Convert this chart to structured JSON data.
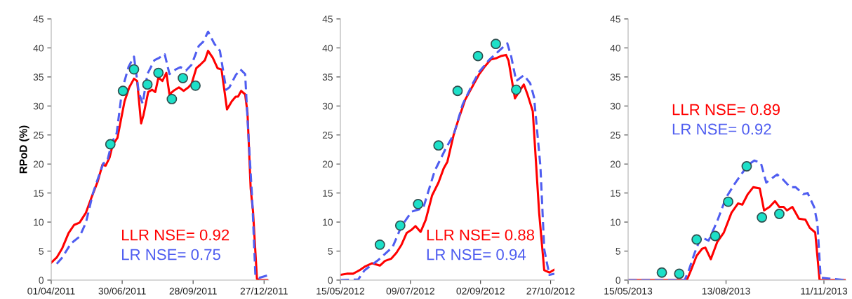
{
  "chart_data": [
    {
      "type": "line",
      "ylabel": "RPoD (%)",
      "xlim": [
        "2011-04-01",
        "2012-01-02"
      ],
      "ylim": [
        0,
        45
      ],
      "yticks": [
        0,
        5,
        10,
        15,
        20,
        25,
        30,
        35,
        40,
        45
      ],
      "xticks": [
        {
          "value": "2011-04-01",
          "label": "01/04/2011"
        },
        {
          "value": "2011-06-30",
          "label": "30/06/2011"
        },
        {
          "value": "2011-09-28",
          "label": "28/09/2011"
        },
        {
          "value": "2011-12-27",
          "label": "27/12/2011"
        }
      ],
      "grid": false,
      "legend": false,
      "annotations": [
        "LLR NSE= 0.92",
        "LR NSE= 0.75"
      ],
      "series": [
        {
          "color": "#ff0000",
          "line_style": "solid",
          "x": [
            "2011-04-01",
            "2011-04-08",
            "2011-04-15",
            "2011-04-23",
            "2011-04-30",
            "2011-05-07",
            "2011-05-15",
            "2011-05-22",
            "2011-05-30",
            "2011-06-05",
            "2011-06-09",
            "2011-06-14",
            "2011-06-18",
            "2011-06-24",
            "2011-06-29",
            "2011-07-03",
            "2011-07-09",
            "2011-07-15",
            "2011-07-19",
            "2011-07-24",
            "2011-07-27",
            "2011-08-02",
            "2011-08-07",
            "2011-08-11",
            "2011-08-15",
            "2011-08-20",
            "2011-08-25",
            "2011-08-29",
            "2011-09-03",
            "2011-09-10",
            "2011-09-16",
            "2011-09-22",
            "2011-09-26",
            "2011-10-02",
            "2011-10-07",
            "2011-10-13",
            "2011-10-17",
            "2011-10-23",
            "2011-10-29",
            "2011-11-03",
            "2011-11-10",
            "2011-11-16",
            "2011-11-21",
            "2011-11-24",
            "2011-11-28",
            "2011-12-03",
            "2011-12-06",
            "2011-12-10",
            "2011-12-13",
            "2011-12-18",
            "2011-12-21",
            "2011-12-31"
          ],
          "values": [
            3.0,
            3.9,
            5.5,
            8.1,
            9.5,
            9.9,
            11.6,
            14.2,
            17.0,
            19.9,
            19.7,
            21.1,
            23.3,
            24.5,
            28.0,
            30.8,
            33.2,
            34.7,
            34.3,
            27.0,
            28.4,
            32.4,
            32.8,
            32.4,
            34.9,
            34.3,
            35.7,
            32.0,
            32.6,
            33.2,
            32.6,
            33.2,
            33.8,
            36.5,
            37.1,
            37.9,
            39.5,
            38.3,
            36.5,
            36.3,
            29.4,
            30.8,
            31.6,
            31.6,
            32.6,
            32.0,
            28.8,
            15.8,
            11.8,
            0.2,
            0,
            0
          ]
        },
        {
          "color": "#4f5df0",
          "line_style": "dashed",
          "x": [
            "2011-04-08",
            "2011-04-15",
            "2011-04-26",
            "2011-05-07",
            "2011-05-15",
            "2011-05-24",
            "2011-05-30",
            "2011-06-06",
            "2011-06-11",
            "2011-06-17",
            "2011-06-23",
            "2011-06-30",
            "2011-07-08",
            "2011-07-15",
            "2011-07-21",
            "2011-07-26",
            "2011-08-01",
            "2011-08-10",
            "2011-08-16",
            "2011-08-23",
            "2011-08-29",
            "2011-09-06",
            "2011-09-12",
            "2011-09-19",
            "2011-09-26",
            "2011-10-05",
            "2011-10-11",
            "2011-10-17",
            "2011-10-25",
            "2011-11-01",
            "2011-11-09",
            "2011-11-13",
            "2011-11-21",
            "2011-11-27",
            "2011-12-03",
            "2011-12-07",
            "2011-12-12",
            "2011-12-16",
            "2011-12-21",
            "2011-12-31"
          ],
          "values": [
            2.8,
            3.9,
            6.3,
            7.5,
            9.9,
            15.0,
            17.4,
            20.1,
            20.5,
            23.7,
            25.3,
            32.8,
            36.7,
            38.5,
            32.4,
            30.4,
            35.5,
            37.9,
            38.3,
            38.9,
            35.5,
            36.3,
            36.7,
            36.1,
            37.1,
            40.3,
            41.1,
            42.8,
            40.7,
            39.5,
            32.8,
            33.2,
            35.3,
            36.3,
            35.5,
            25.3,
            13.8,
            0.8,
            0.4,
            0.8
          ]
        },
        {
          "type": "scatter",
          "color": "#1de0c8",
          "marker": "circle",
          "x": [
            "2011-06-15",
            "2011-07-01",
            "2011-07-15",
            "2011-08-01",
            "2011-08-15",
            "2011-09-01",
            "2011-09-15",
            "2011-10-01"
          ],
          "values": [
            23.4,
            32.6,
            36.3,
            33.7,
            35.7,
            31.2,
            34.8,
            33.5
          ]
        }
      ]
    },
    {
      "type": "line",
      "xlim": [
        "2012-05-15",
        "2012-10-30"
      ],
      "ylim": [
        0,
        45
      ],
      "yticks": [
        0,
        5,
        10,
        15,
        20,
        25,
        30,
        35,
        40,
        45
      ],
      "xticks": [
        {
          "value": "2012-05-15",
          "label": "15/05/2012"
        },
        {
          "value": "2012-07-09",
          "label": "09/07/2012"
        },
        {
          "value": "2012-09-02",
          "label": "02/09/2012"
        },
        {
          "value": "2012-10-27",
          "label": "27/10/2012"
        }
      ],
      "grid": false,
      "legend": false,
      "annotations": [
        "LLR NSE= 0.88",
        "LR NSE= 0.94"
      ],
      "series": [
        {
          "color": "#ff0000",
          "line_style": "solid",
          "x": [
            "2012-05-15",
            "2012-05-20",
            "2012-05-25",
            "2012-05-30",
            "2012-06-03",
            "2012-06-09",
            "2012-06-15",
            "2012-06-19",
            "2012-06-24",
            "2012-06-28",
            "2012-07-02",
            "2012-07-06",
            "2012-07-10",
            "2012-07-13",
            "2012-07-17",
            "2012-07-21",
            "2012-07-26",
            "2012-07-31",
            "2012-08-04",
            "2012-08-07",
            "2012-08-12",
            "2012-08-16",
            "2012-08-21",
            "2012-08-27",
            "2012-09-01",
            "2012-09-05",
            "2012-09-10",
            "2012-09-14",
            "2012-09-18",
            "2012-09-22",
            "2012-09-24",
            "2012-09-29",
            "2012-10-03",
            "2012-10-06",
            "2012-10-09",
            "2012-10-13",
            "2012-10-18",
            "2012-10-22",
            "2012-10-26",
            "2012-10-30"
          ],
          "values": [
            0.9,
            1.1,
            1.1,
            1.7,
            2.3,
            2.9,
            2.5,
            3.3,
            3.7,
            4.7,
            6.1,
            8.1,
            8.7,
            9.3,
            8.3,
            10.4,
            14.6,
            16.8,
            19.2,
            20.4,
            25.1,
            27.9,
            31.1,
            33.5,
            35.5,
            36.7,
            38.0,
            38.2,
            38.6,
            38.8,
            37.8,
            31.3,
            32.7,
            33.7,
            31.9,
            29.1,
            11.6,
            1.7,
            1.3,
            1.8
          ]
        },
        {
          "color": "#4f5df0",
          "line_style": "dashed",
          "x": [
            "2012-05-15",
            "2012-05-29",
            "2012-06-03",
            "2012-06-14",
            "2012-06-25",
            "2012-07-02",
            "2012-07-10",
            "2012-07-19",
            "2012-07-28",
            "2012-08-06",
            "2012-08-12",
            "2012-08-19",
            "2012-08-27",
            "2012-09-01",
            "2012-09-09",
            "2012-09-14",
            "2012-09-23",
            "2012-09-26",
            "2012-09-30",
            "2012-10-06",
            "2012-10-11",
            "2012-10-14",
            "2012-10-19",
            "2012-10-22",
            "2012-10-26",
            "2012-10-30"
          ],
          "values": [
            0,
            0.1,
            1.7,
            3.5,
            5.7,
            9.3,
            11.8,
            12.4,
            18.8,
            22.8,
            25.1,
            30.3,
            33.9,
            35.9,
            38.0,
            39.0,
            40.8,
            38.6,
            34.3,
            35.3,
            33.9,
            31.5,
            19.6,
            5.3,
            0.9,
            1.1
          ]
        },
        {
          "type": "scatter",
          "color": "#1de0c8",
          "marker": "circle",
          "x": [
            "2012-06-15",
            "2012-07-01",
            "2012-07-15",
            "2012-07-31",
            "2012-08-15",
            "2012-08-31",
            "2012-09-14",
            "2012-09-30"
          ],
          "values": [
            6.1,
            9.4,
            13.1,
            23.2,
            32.6,
            38.6,
            40.7,
            32.8
          ]
        }
      ]
    },
    {
      "type": "line",
      "xlim": [
        "2013-05-15",
        "2013-12-01"
      ],
      "ylim": [
        0,
        45
      ],
      "yticks": [
        0,
        5,
        10,
        15,
        20,
        25,
        30,
        35,
        40,
        45
      ],
      "xticks": [
        {
          "value": "2013-05-15",
          "label": "15/05/2013"
        },
        {
          "value": "2013-08-13",
          "label": "13/08/2013"
        },
        {
          "value": "2013-11-11",
          "label": "11/11/2013"
        }
      ],
      "grid": false,
      "legend": false,
      "annotations": [
        "LLR NSE= 0.89",
        "LR NSE= 0.92"
      ],
      "series": [
        {
          "color": "#ff0000",
          "line_style": "solid",
          "x": [
            "2013-05-15",
            "2013-07-08",
            "2013-07-12",
            "2013-07-17",
            "2013-07-22",
            "2013-07-25",
            "2013-07-30",
            "2013-08-05",
            "2013-08-11",
            "2013-08-18",
            "2013-08-24",
            "2013-08-28",
            "2013-09-02",
            "2013-09-07",
            "2013-09-13",
            "2013-09-17",
            "2013-09-22",
            "2013-09-27",
            "2013-10-01",
            "2013-10-05",
            "2013-10-08",
            "2013-10-13",
            "2013-10-19",
            "2013-10-25",
            "2013-10-29",
            "2013-11-03",
            "2013-11-07",
            "2013-12-01"
          ],
          "values": [
            0,
            0,
            1.8,
            4.2,
            5.4,
            5.6,
            3.6,
            6.6,
            8.2,
            11.6,
            13.2,
            13.0,
            14.8,
            16.0,
            15.8,
            12.0,
            12.6,
            13.6,
            12.6,
            12.6,
            12.0,
            12.6,
            10.6,
            10.4,
            9.0,
            8.2,
            0,
            0
          ]
        },
        {
          "color": "#4f5df0",
          "line_style": "dashed",
          "x": [
            "2013-05-15",
            "2013-07-06",
            "2013-07-10",
            "2013-07-15",
            "2013-07-21",
            "2013-07-28",
            "2013-08-05",
            "2013-08-13",
            "2013-08-21",
            "2013-09-02",
            "2013-09-08",
            "2013-09-14",
            "2013-09-19",
            "2013-09-29",
            "2013-10-04",
            "2013-10-11",
            "2013-10-16",
            "2013-10-23",
            "2013-10-27",
            "2013-11-02",
            "2013-11-05",
            "2013-11-08",
            "2013-12-01"
          ],
          "values": [
            0,
            0,
            1.8,
            4.6,
            7.4,
            6.8,
            10.2,
            14.2,
            16.6,
            19.8,
            20.6,
            20.2,
            16.8,
            18.2,
            17.4,
            16.0,
            16.0,
            14.8,
            15.0,
            12.6,
            9.8,
            0.4,
            0
          ]
        },
        {
          "type": "scatter",
          "color": "#1de0c8",
          "marker": "circle",
          "x": [
            "2013-06-15",
            "2013-07-01",
            "2013-07-17",
            "2013-08-03",
            "2013-08-15",
            "2013-09-01",
            "2013-09-15",
            "2013-10-01"
          ],
          "values": [
            1.3,
            1.1,
            7.0,
            7.6,
            13.5,
            19.6,
            10.8,
            11.4
          ]
        }
      ]
    }
  ]
}
